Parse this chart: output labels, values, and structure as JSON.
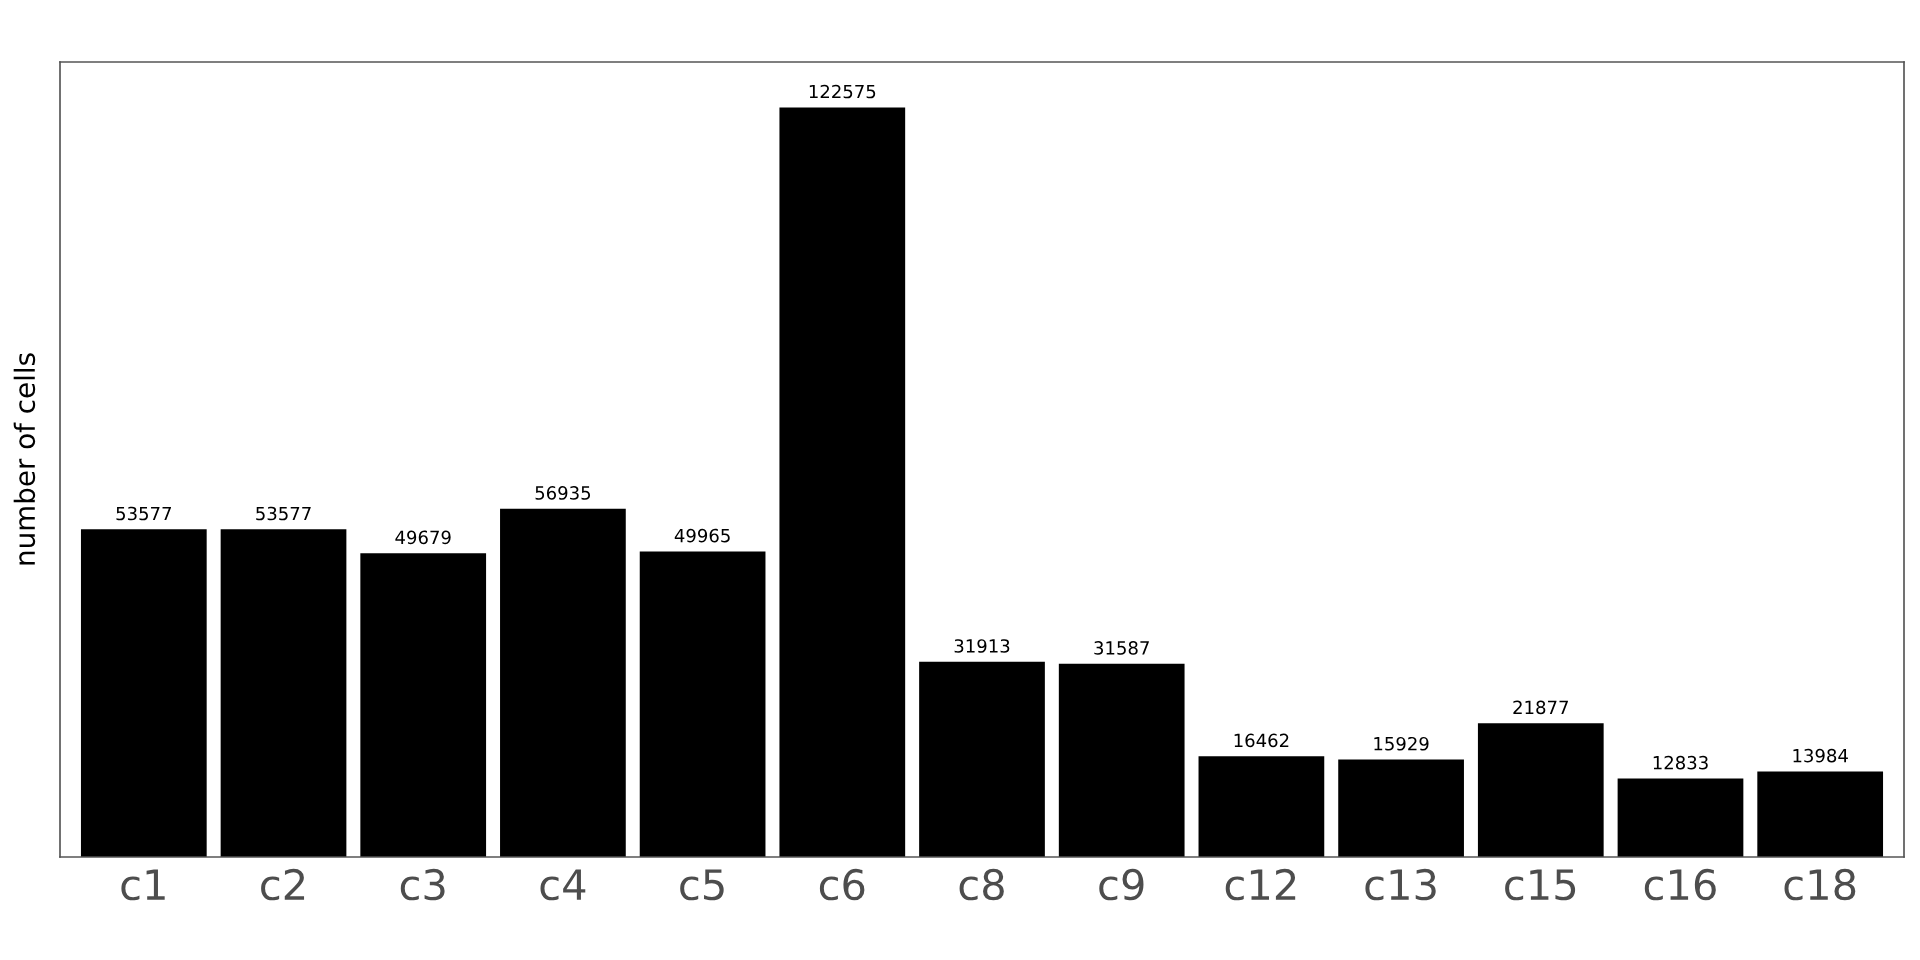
{
  "chart_data": {
    "type": "bar",
    "ylabel": "number of cells",
    "categories": [
      "c1",
      "c2",
      "c3",
      "c4",
      "c5",
      "c6",
      "c8",
      "c9",
      "c12",
      "c13",
      "c15",
      "c16",
      "c18"
    ],
    "values": [
      53577,
      53577,
      49679,
      56935,
      49965,
      122575,
      31913,
      31587,
      16462,
      15929,
      21877,
      12833,
      13984
    ],
    "color": "#000000",
    "ylim": [
      0,
      130000
    ],
    "data_labels": true,
    "tick_labels": "x",
    "grid": false,
    "legend": false
  }
}
